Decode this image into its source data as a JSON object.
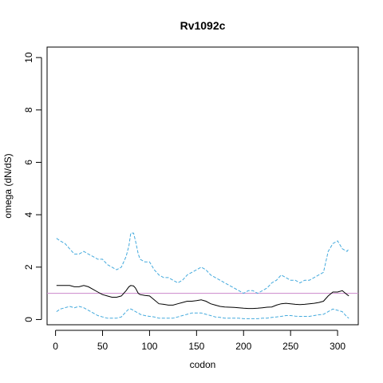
{
  "chart_data": {
    "type": "line",
    "title": "Rv1092c",
    "xlabel": "codon",
    "ylabel": "omega (dN/dS)",
    "xlim": [
      -9,
      322
    ],
    "ylim": [
      -0.2,
      10.4
    ],
    "x_ticks": [
      0,
      50,
      100,
      150,
      200,
      250,
      300
    ],
    "y_ticks": [
      0,
      2,
      4,
      6,
      8,
      10
    ],
    "grid": false,
    "legend": "none",
    "reference_line": {
      "y": 1,
      "color": "#cc88cc"
    },
    "series": [
      {
        "style": "dashed",
        "color": "#44aadd",
        "role": "upper",
        "x": [
          1,
          5,
          10,
          15,
          20,
          25,
          30,
          35,
          40,
          45,
          50,
          55,
          60,
          65,
          70,
          75,
          78,
          80,
          83,
          85,
          88,
          90,
          95,
          100,
          105,
          110,
          115,
          120,
          125,
          130,
          135,
          140,
          145,
          150,
          155,
          160,
          165,
          170,
          175,
          180,
          185,
          190,
          195,
          200,
          205,
          210,
          215,
          220,
          225,
          230,
          235,
          240,
          245,
          250,
          255,
          260,
          265,
          270,
          275,
          280,
          285,
          290,
          295,
          300,
          305,
          310,
          312
        ],
        "y": [
          3.1,
          3.0,
          2.9,
          2.7,
          2.5,
          2.5,
          2.6,
          2.5,
          2.4,
          2.3,
          2.3,
          2.1,
          2.0,
          1.9,
          2.0,
          2.4,
          2.8,
          3.3,
          3.3,
          3.0,
          2.5,
          2.3,
          2.2,
          2.2,
          1.9,
          1.7,
          1.6,
          1.6,
          1.5,
          1.4,
          1.5,
          1.7,
          1.8,
          1.9,
          2.0,
          1.9,
          1.7,
          1.6,
          1.5,
          1.4,
          1.3,
          1.2,
          1.1,
          1.0,
          1.1,
          1.1,
          1.0,
          1.1,
          1.2,
          1.4,
          1.5,
          1.7,
          1.6,
          1.5,
          1.5,
          1.4,
          1.5,
          1.5,
          1.6,
          1.7,
          1.8,
          2.6,
          2.9,
          3.0,
          2.7,
          2.6,
          2.7
        ]
      },
      {
        "style": "solid",
        "color": "#000000",
        "role": "estimate",
        "x": [
          1,
          5,
          10,
          15,
          20,
          25,
          30,
          35,
          40,
          45,
          50,
          55,
          60,
          65,
          70,
          75,
          78,
          80,
          83,
          85,
          88,
          90,
          95,
          100,
          105,
          110,
          115,
          120,
          125,
          130,
          135,
          140,
          145,
          150,
          155,
          160,
          165,
          170,
          175,
          180,
          185,
          190,
          195,
          200,
          205,
          210,
          215,
          220,
          225,
          230,
          235,
          240,
          245,
          250,
          255,
          260,
          265,
          270,
          275,
          280,
          285,
          290,
          295,
          300,
          305,
          310,
          312
        ],
        "y": [
          1.3,
          1.3,
          1.3,
          1.3,
          1.25,
          1.25,
          1.3,
          1.25,
          1.15,
          1.05,
          0.95,
          0.9,
          0.85,
          0.85,
          0.9,
          1.1,
          1.25,
          1.3,
          1.28,
          1.2,
          1.0,
          0.95,
          0.92,
          0.9,
          0.75,
          0.6,
          0.58,
          0.55,
          0.55,
          0.6,
          0.65,
          0.7,
          0.7,
          0.72,
          0.75,
          0.7,
          0.6,
          0.55,
          0.5,
          0.48,
          0.47,
          0.46,
          0.45,
          0.43,
          0.42,
          0.42,
          0.43,
          0.45,
          0.47,
          0.48,
          0.55,
          0.6,
          0.62,
          0.6,
          0.58,
          0.57,
          0.58,
          0.6,
          0.62,
          0.65,
          0.7,
          0.9,
          1.05,
          1.05,
          1.1,
          0.95,
          0.9
        ]
      },
      {
        "style": "dashed",
        "color": "#44aadd",
        "role": "lower",
        "x": [
          1,
          5,
          10,
          15,
          20,
          25,
          30,
          35,
          40,
          45,
          50,
          55,
          60,
          65,
          70,
          75,
          78,
          80,
          83,
          85,
          88,
          90,
          95,
          100,
          105,
          110,
          115,
          120,
          125,
          130,
          135,
          140,
          145,
          150,
          155,
          160,
          165,
          170,
          175,
          180,
          185,
          190,
          195,
          200,
          205,
          210,
          215,
          220,
          225,
          230,
          235,
          240,
          245,
          250,
          255,
          260,
          265,
          270,
          275,
          280,
          285,
          290,
          295,
          300,
          305,
          310,
          312
        ],
        "y": [
          0.3,
          0.4,
          0.45,
          0.5,
          0.45,
          0.5,
          0.45,
          0.35,
          0.25,
          0.15,
          0.1,
          0.05,
          0.05,
          0.05,
          0.1,
          0.3,
          0.4,
          0.4,
          0.35,
          0.3,
          0.25,
          0.2,
          0.15,
          0.12,
          0.1,
          0.05,
          0.05,
          0.05,
          0.05,
          0.1,
          0.15,
          0.2,
          0.25,
          0.25,
          0.25,
          0.2,
          0.15,
          0.1,
          0.08,
          0.05,
          0.05,
          0.05,
          0.05,
          0.03,
          0.03,
          0.03,
          0.03,
          0.05,
          0.05,
          0.08,
          0.1,
          0.12,
          0.15,
          0.15,
          0.13,
          0.12,
          0.12,
          0.12,
          0.15,
          0.18,
          0.2,
          0.3,
          0.4,
          0.35,
          0.3,
          0.1,
          0.05
        ]
      }
    ]
  }
}
